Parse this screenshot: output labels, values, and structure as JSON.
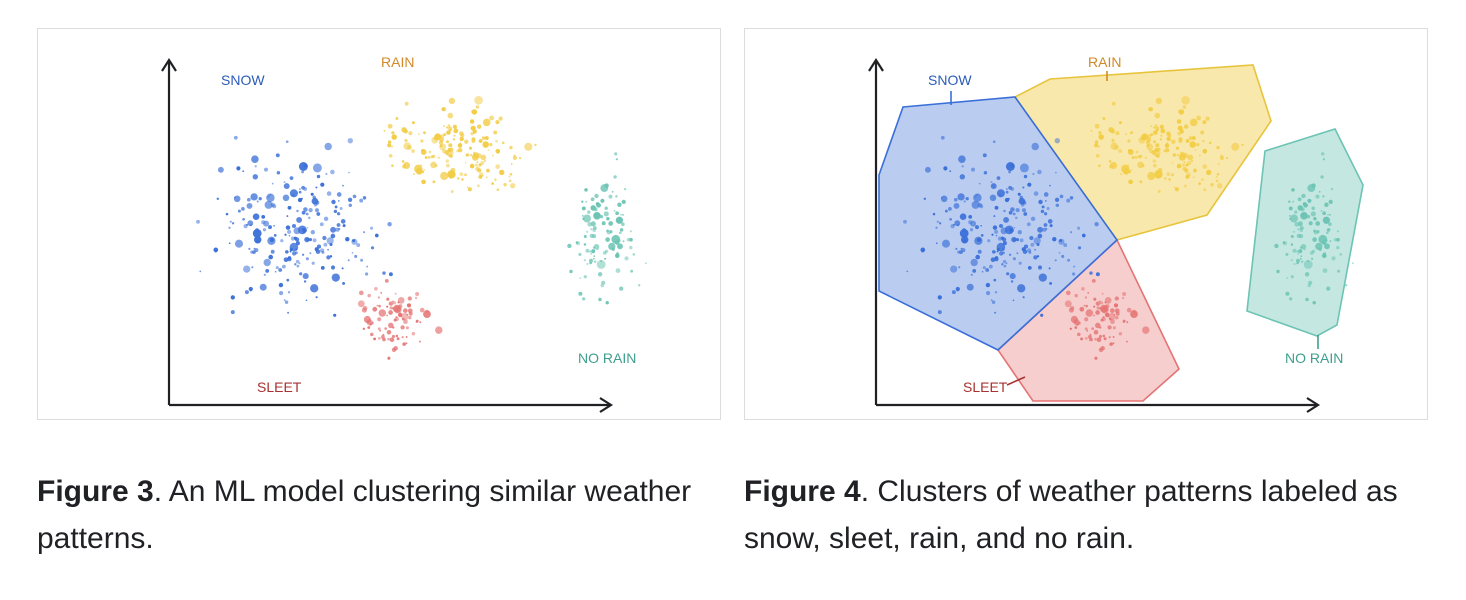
{
  "figure3": {
    "labels": {
      "snow": "SNOW",
      "rain": "RAIN",
      "no_rain": "NO RAIN",
      "sleet": "SLEET"
    },
    "caption": {
      "bold": "Figure 3",
      "text": ". An ML model clustering similar weather patterns."
    }
  },
  "figure4": {
    "labels": {
      "snow": "SNOW",
      "rain": "RAIN",
      "no_rain": "NO RAIN",
      "sleet": "SLEET"
    },
    "caption": {
      "bold": "Figure 4",
      "text": ". Clusters of weather patterns labeled as snow, sleet, rain, and no rain."
    }
  },
  "colors": {
    "snow": "#3a6fd8",
    "rain": "#f2cc45",
    "sleet": "#e57373",
    "no_rain": "#6cc4b4",
    "snow_label": "#2b5cb8",
    "rain_label": "#d08a2a",
    "sleet_label": "#a83232",
    "no_rain_label": "#3f9f8e",
    "axis": "#202124"
  }
}
